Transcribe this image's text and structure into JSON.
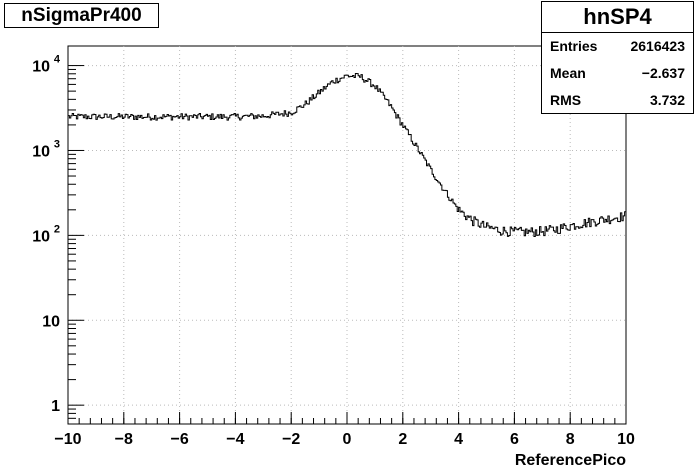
{
  "title_box": {
    "text": "nSigmaPr400"
  },
  "stats": {
    "name": "hnSP4",
    "entries_label": "Entries",
    "entries_value": "2616423",
    "mean_label": "Mean",
    "mean_value": "−2.637",
    "rms_label": "RMS",
    "rms_value": "3.732"
  },
  "chart_data": {
    "type": "line",
    "style": "step-histogram",
    "xlabel": "ReferencePico",
    "ylabel": "",
    "xlim": [
      -10,
      10
    ],
    "ylim": [
      0.6,
      17000
    ],
    "yscale": "log",
    "grid": true,
    "xticks": [
      -10,
      -8,
      -6,
      -4,
      -2,
      0,
      2,
      4,
      6,
      8,
      10
    ],
    "xtick_labels": [
      "−10",
      "−8",
      "−6",
      "−4",
      "−2",
      "0",
      "2",
      "4",
      "6",
      "8",
      "10"
    ],
    "yticks": [
      1,
      10,
      100,
      1000,
      10000
    ],
    "ytick_labels": [
      "1",
      "10",
      "10^2",
      "10^3",
      "10^4"
    ],
    "envelope": {
      "x": [
        -10,
        -8,
        -6,
        -4,
        -3,
        -2,
        -1.5,
        -1,
        -0.5,
        0,
        0.5,
        1,
        1.5,
        2,
        2.5,
        3,
        3.5,
        4,
        4.5,
        5,
        5.5,
        6,
        6.5,
        7,
        7.5,
        8,
        9,
        10
      ],
      "y": [
        2500,
        2500,
        2500,
        2500,
        2550,
        2800,
        3500,
        4800,
        6500,
        7600,
        7400,
        5800,
        3600,
        2000,
        1100,
        600,
        340,
        200,
        150,
        125,
        115,
        110,
        110,
        112,
        118,
        130,
        150,
        170
      ]
    },
    "bins": 400,
    "fluctuation": 0.09
  }
}
